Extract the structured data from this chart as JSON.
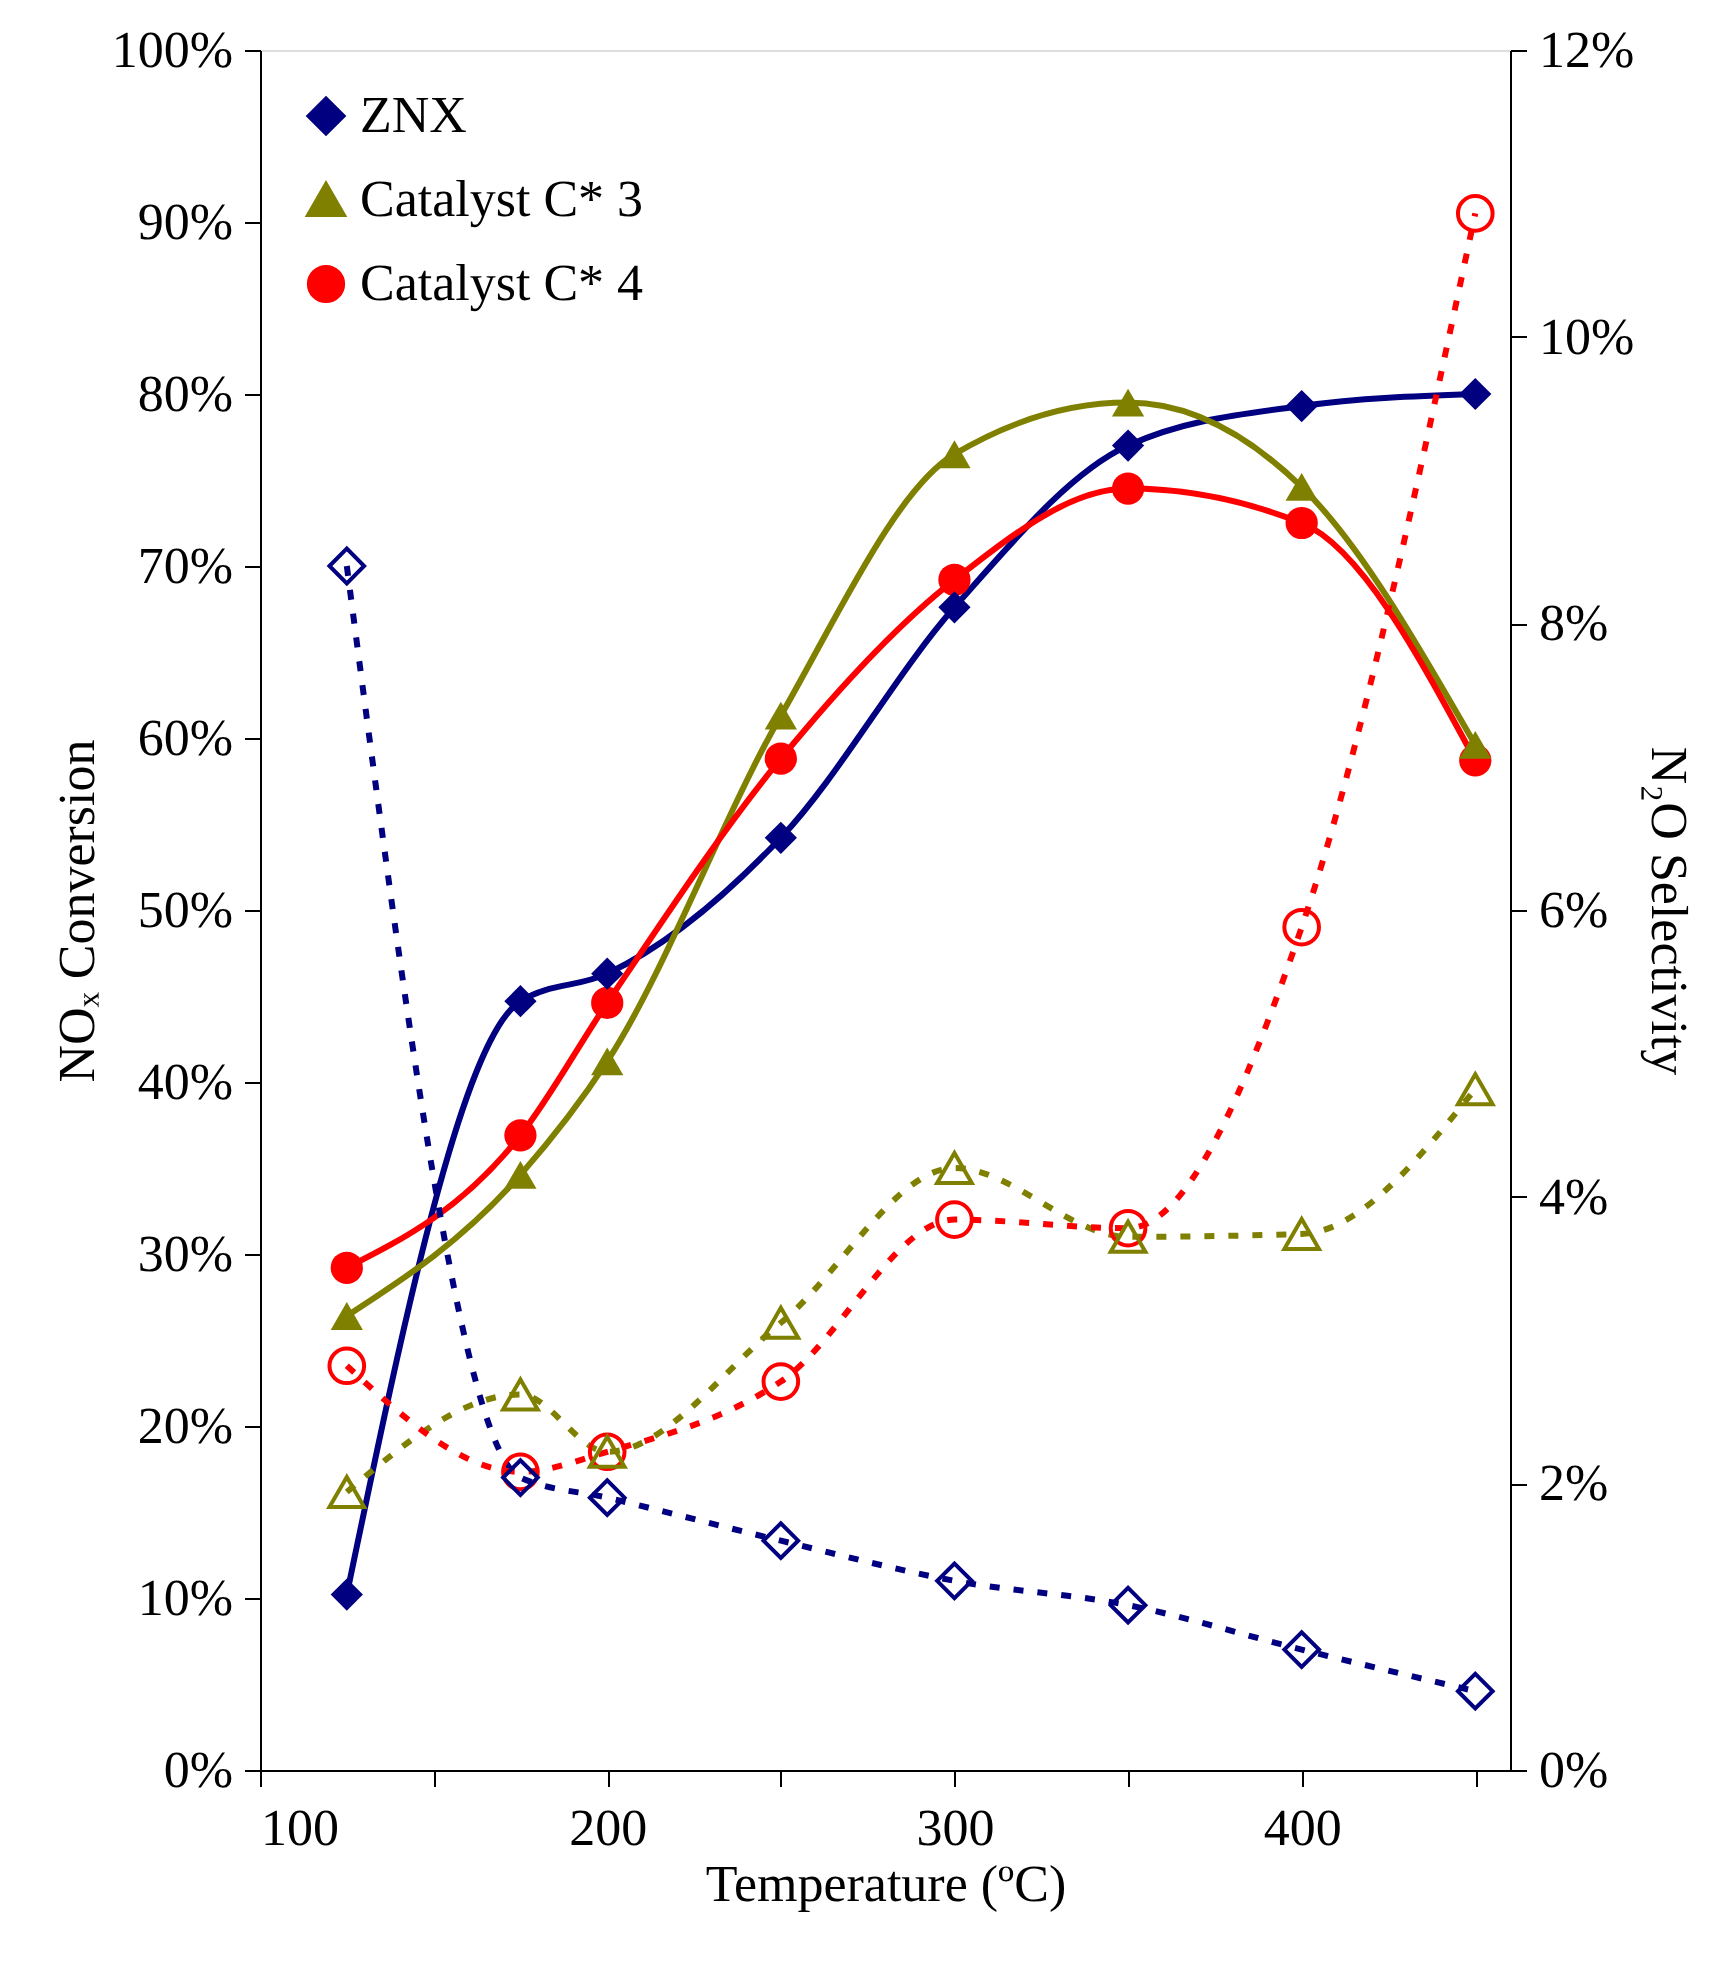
{
  "chart_data": {
    "type": "line",
    "xlabel": "Temperature (ºC)",
    "ylabel": "NOₓ Conversion",
    "y2label": "N₂O Selectivity",
    "x": [
      125,
      175,
      200,
      250,
      300,
      350,
      400,
      450
    ],
    "series": [
      {
        "name": "ZNX",
        "color": "#000080",
        "marker": "diamond",
        "line_style": "solid",
        "values": [
          10.2,
          44.7,
          46.3,
          54.2,
          67.6,
          77.0,
          79.3,
          80.0
        ]
      },
      {
        "name": "Catalyst C* 3",
        "color": "#808000",
        "marker": "triangle",
        "line_style": "solid",
        "values": [
          26.4,
          34.6,
          41.2,
          61.3,
          76.5,
          79.5,
          74.6,
          59.6
        ]
      },
      {
        "name": "Catalyst C* 4",
        "color": "#ff0000",
        "marker": "circle",
        "line_style": "solid",
        "values": [
          29.2,
          36.9,
          44.6,
          58.8,
          69.2,
          74.5,
          72.5,
          58.7
        ]
      },
      {
        "color": "#000080",
        "marker": "diamond",
        "line_style": "dashed",
        "axis": "y2",
        "values": [
          8.4,
          2.04,
          1.9,
          1.6,
          1.32,
          1.15,
          0.84,
          0.55
        ]
      },
      {
        "color": "#808000",
        "marker": "triangle",
        "line_style": "dashed",
        "axis": "y2",
        "values": [
          1.94,
          2.62,
          2.22,
          3.12,
          4.2,
          3.72,
          3.74,
          4.75
        ]
      },
      {
        "color": "#ff0000",
        "marker": "circle",
        "line_style": "dashed",
        "axis": "y2",
        "values": [
          2.82,
          2.08,
          2.22,
          2.71,
          3.84,
          3.78,
          5.88,
          10.86
        ]
      }
    ],
    "xlim": [
      100,
      460
    ],
    "xticks": [
      100,
      {
        "value": 150,
        "label": null
      },
      200,
      {
        "value": 250,
        "label": null
      },
      300,
      {
        "value": 350,
        "label": null
      },
      400,
      {
        "value": 450,
        "label": null
      }
    ],
    "ylim": [
      0,
      100
    ],
    "yticks": [
      {
        "value": 0,
        "label": "0%"
      },
      {
        "value": 10,
        "label": "10%"
      },
      {
        "value": 20,
        "label": "20%"
      },
      {
        "value": 30,
        "label": "30%"
      },
      {
        "value": 40,
        "label": "40%"
      },
      {
        "value": 50,
        "label": "50%"
      },
      {
        "value": 60,
        "label": "60%"
      },
      {
        "value": 70,
        "label": "70%"
      },
      {
        "value": 80,
        "label": "80%"
      },
      {
        "value": 90,
        "label": "90%"
      },
      {
        "value": 100,
        "label": "100%"
      }
    ],
    "y2lim": [
      0,
      12
    ],
    "y2ticks": [
      {
        "value": 0,
        "label": "0%"
      },
      {
        "value": 2,
        "label": "2%"
      },
      {
        "value": 4,
        "label": "4%"
      },
      {
        "value": 6,
        "label": "6%"
      },
      {
        "value": 8,
        "label": "8%"
      },
      {
        "value": 10,
        "label": "10%"
      },
      {
        "value": 12,
        "label": "12%"
      }
    ],
    "grid": false,
    "legend": "top left"
  }
}
